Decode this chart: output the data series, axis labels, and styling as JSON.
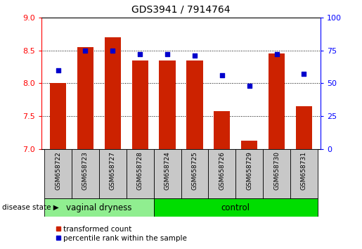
{
  "title": "GDS3941 / 7914764",
  "samples": [
    "GSM658722",
    "GSM658723",
    "GSM658727",
    "GSM658728",
    "GSM658724",
    "GSM658725",
    "GSM658726",
    "GSM658729",
    "GSM658730",
    "GSM658731"
  ],
  "red_values": [
    8.0,
    8.55,
    8.7,
    8.35,
    8.35,
    8.35,
    7.57,
    7.12,
    8.45,
    7.65
  ],
  "blue_values_pct": [
    60,
    75,
    75,
    72,
    72,
    71,
    56,
    48,
    72,
    57
  ],
  "ylim_left": [
    7.0,
    9.0
  ],
  "ylim_right": [
    0,
    100
  ],
  "yticks_left": [
    7.0,
    7.5,
    8.0,
    8.5,
    9.0
  ],
  "yticks_right": [
    0,
    25,
    50,
    75,
    100
  ],
  "group1": "vaginal dryness",
  "group2": "control",
  "group1_count": 4,
  "group2_count": 6,
  "group1_color": "#90ee90",
  "group2_color": "#00dd00",
  "bar_color": "#cc2200",
  "dot_color": "#0000cc",
  "bar_bottom": 7.0,
  "cell_bg_color": "#c8c8c8",
  "legend_red_label": "transformed count",
  "legend_blue_label": "percentile rank within the sample",
  "disease_state_label": "disease state"
}
